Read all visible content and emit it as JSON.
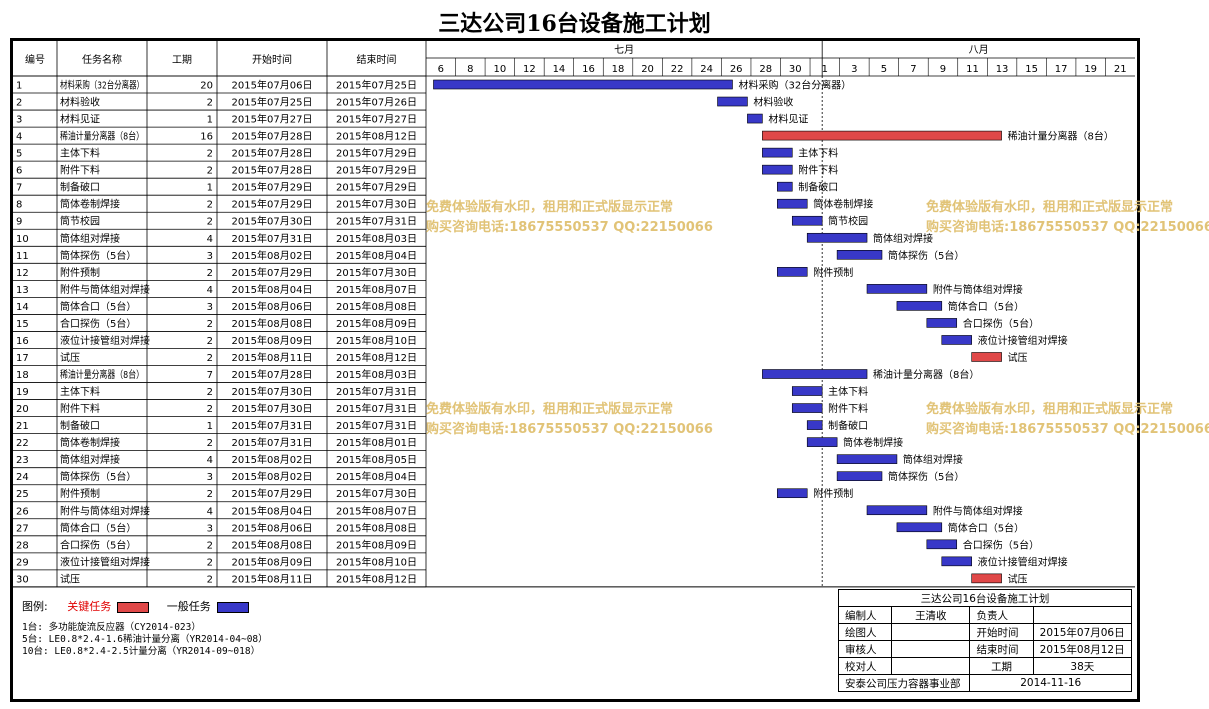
{
  "title": "三达公司16台设备施工计划",
  "headers": {
    "id": "编号",
    "name": "任务名称",
    "duration": "工期",
    "start": "开始时间",
    "end": "结束时间",
    "month1": "七月",
    "month2": "八月"
  },
  "day_ticks": [
    "6",
    "8",
    "10",
    "12",
    "14",
    "16",
    "18",
    "20",
    "22",
    "24",
    "26",
    "28",
    "30",
    "1",
    "3",
    "5",
    "7",
    "9",
    "11",
    "13",
    "15",
    "17",
    "19",
    "21"
  ],
  "colors": {
    "critical": "#e04848",
    "normal": "#3838c8",
    "critical_text": "#e00000"
  },
  "chart_data": {
    "type": "gantt",
    "x_start": "2015-07-05",
    "x_end": "2015-08-21",
    "tasks": [
      {
        "id": "1",
        "name": "材料采购（32台分离器）",
        "duration": "20",
        "start": "2015年07月06日",
        "end": "2015年07月25日",
        "s": "2015-07-06",
        "e": "2015-07-25",
        "critical": false,
        "label": "材料采购（32台分离器）"
      },
      {
        "id": "2",
        "name": "材料验收",
        "duration": "2",
        "start": "2015年07月25日",
        "end": "2015年07月26日",
        "s": "2015-07-25",
        "e": "2015-07-26",
        "critical": false,
        "label": "材料验收"
      },
      {
        "id": "3",
        "name": "材料见证",
        "duration": "1",
        "start": "2015年07月27日",
        "end": "2015年07月27日",
        "s": "2015-07-27",
        "e": "2015-07-27",
        "critical": false,
        "label": "材料见证"
      },
      {
        "id": "4",
        "name": "稀油计量分离器（8台）",
        "duration": "16",
        "start": "2015年07月28日",
        "end": "2015年08月12日",
        "s": "2015-07-28",
        "e": "2015-08-12",
        "critical": true,
        "label": "稀油计量分离器（8台）"
      },
      {
        "id": "5",
        "name": "主体下料",
        "duration": "2",
        "start": "2015年07月28日",
        "end": "2015年07月29日",
        "s": "2015-07-28",
        "e": "2015-07-29",
        "critical": false,
        "label": "主体下料"
      },
      {
        "id": "6",
        "name": "附件下料",
        "duration": "2",
        "start": "2015年07月28日",
        "end": "2015年07月29日",
        "s": "2015-07-28",
        "e": "2015-07-29",
        "critical": false,
        "label": "附件下料"
      },
      {
        "id": "7",
        "name": "制备破口",
        "duration": "1",
        "start": "2015年07月29日",
        "end": "2015年07月29日",
        "s": "2015-07-29",
        "e": "2015-07-29",
        "critical": false,
        "label": "制备破口"
      },
      {
        "id": "8",
        "name": "筒体卷制焊接",
        "duration": "2",
        "start": "2015年07月29日",
        "end": "2015年07月30日",
        "s": "2015-07-29",
        "e": "2015-07-30",
        "critical": false,
        "label": "筒体卷制焊接"
      },
      {
        "id": "9",
        "name": "筒节校园",
        "duration": "2",
        "start": "2015年07月30日",
        "end": "2015年07月31日",
        "s": "2015-07-30",
        "e": "2015-07-31",
        "critical": false,
        "label": "筒节校园"
      },
      {
        "id": "10",
        "name": "筒体组对焊接",
        "duration": "4",
        "start": "2015年07月31日",
        "end": "2015年08月03日",
        "s": "2015-07-31",
        "e": "2015-08-03",
        "critical": false,
        "label": "筒体组对焊接"
      },
      {
        "id": "11",
        "name": "筒体探伤（5台）",
        "duration": "3",
        "start": "2015年08月02日",
        "end": "2015年08月04日",
        "s": "2015-08-02",
        "e": "2015-08-04",
        "critical": false,
        "label": "筒体探伤（5台）"
      },
      {
        "id": "12",
        "name": "附件预制",
        "duration": "2",
        "start": "2015年07月29日",
        "end": "2015年07月30日",
        "s": "2015-07-29",
        "e": "2015-07-30",
        "critical": false,
        "label": "附件预制"
      },
      {
        "id": "13",
        "name": "附件与筒体组对焊接",
        "duration": "4",
        "start": "2015年08月04日",
        "end": "2015年08月07日",
        "s": "2015-08-04",
        "e": "2015-08-07",
        "critical": false,
        "label": "附件与筒体组对焊接"
      },
      {
        "id": "14",
        "name": "筒体合口（5台）",
        "duration": "3",
        "start": "2015年08月06日",
        "end": "2015年08月08日",
        "s": "2015-08-06",
        "e": "2015-08-08",
        "critical": false,
        "label": "筒体合口（5台）"
      },
      {
        "id": "15",
        "name": "合口探伤（5台）",
        "duration": "2",
        "start": "2015年08月08日",
        "end": "2015年08月09日",
        "s": "2015-08-08",
        "e": "2015-08-09",
        "critical": false,
        "label": "合口探伤（5台）"
      },
      {
        "id": "16",
        "name": "液位计接管组对焊接",
        "duration": "2",
        "start": "2015年08月09日",
        "end": "2015年08月10日",
        "s": "2015-08-09",
        "e": "2015-08-10",
        "critical": false,
        "label": "液位计接管组对焊接"
      },
      {
        "id": "17",
        "name": "试压",
        "duration": "2",
        "start": "2015年08月11日",
        "end": "2015年08月12日",
        "s": "2015-08-11",
        "e": "2015-08-12",
        "critical": true,
        "label": "试压"
      },
      {
        "id": "18",
        "name": "稀油计量分离器（8台）",
        "duration": "7",
        "start": "2015年07月28日",
        "end": "2015年08月03日",
        "s": "2015-07-28",
        "e": "2015-08-03",
        "critical": false,
        "label": "稀油计量分离器（8台）"
      },
      {
        "id": "19",
        "name": "主体下料",
        "duration": "2",
        "start": "2015年07月30日",
        "end": "2015年07月31日",
        "s": "2015-07-30",
        "e": "2015-07-31",
        "critical": false,
        "label": "主体下料"
      },
      {
        "id": "20",
        "name": "附件下料",
        "duration": "2",
        "start": "2015年07月30日",
        "end": "2015年07月31日",
        "s": "2015-07-30",
        "e": "2015-07-31",
        "critical": false,
        "label": "附件下料"
      },
      {
        "id": "21",
        "name": "制备破口",
        "duration": "1",
        "start": "2015年07月31日",
        "end": "2015年07月31日",
        "s": "2015-07-31",
        "e": "2015-07-31",
        "critical": false,
        "label": "制备破口"
      },
      {
        "id": "22",
        "name": "筒体卷制焊接",
        "duration": "2",
        "start": "2015年07月31日",
        "end": "2015年08月01日",
        "s": "2015-07-31",
        "e": "2015-08-01",
        "critical": false,
        "label": "筒体卷制焊接"
      },
      {
        "id": "23",
        "name": "筒体组对焊接",
        "duration": "4",
        "start": "2015年08月02日",
        "end": "2015年08月05日",
        "s": "2015-08-02",
        "e": "2015-08-05",
        "critical": false,
        "label": "筒体组对焊接"
      },
      {
        "id": "24",
        "name": "筒体探伤（5台）",
        "duration": "3",
        "start": "2015年08月02日",
        "end": "2015年08月04日",
        "s": "2015-08-02",
        "e": "2015-08-04",
        "critical": false,
        "label": "筒体探伤（5台）"
      },
      {
        "id": "25",
        "name": "附件预制",
        "duration": "2",
        "start": "2015年07月29日",
        "end": "2015年07月30日",
        "s": "2015-07-29",
        "e": "2015-07-30",
        "critical": false,
        "label": "附件预制"
      },
      {
        "id": "26",
        "name": "附件与筒体组对焊接",
        "duration": "4",
        "start": "2015年08月04日",
        "end": "2015年08月07日",
        "s": "2015-08-04",
        "e": "2015-08-07",
        "critical": false,
        "label": "附件与筒体组对焊接"
      },
      {
        "id": "27",
        "name": "筒体合口（5台）",
        "duration": "3",
        "start": "2015年08月06日",
        "end": "2015年08月08日",
        "s": "2015-08-06",
        "e": "2015-08-08",
        "critical": false,
        "label": "筒体合口（5台）"
      },
      {
        "id": "28",
        "name": "合口探伤（5台）",
        "duration": "2",
        "start": "2015年08月08日",
        "end": "2015年08月09日",
        "s": "2015-08-08",
        "e": "2015-08-09",
        "critical": false,
        "label": "合口探伤（5台）"
      },
      {
        "id": "29",
        "name": "液位计接管组对焊接",
        "duration": "2",
        "start": "2015年08月09日",
        "end": "2015年08月10日",
        "s": "2015-08-09",
        "e": "2015-08-10",
        "critical": false,
        "label": "液位计接管组对焊接"
      },
      {
        "id": "30",
        "name": "试压",
        "duration": "2",
        "start": "2015年08月11日",
        "end": "2015年08月12日",
        "s": "2015-08-11",
        "e": "2015-08-12",
        "critical": true,
        "label": "试压"
      }
    ]
  },
  "legend": {
    "title": "图例:",
    "critical": "关键任务",
    "normal": "一般任务"
  },
  "notes": [
    "1台: 多功能旋流反应器（CY2014-023）",
    "5台: LE0.8*2.4-1.6稀油计量分离（YR2014-04~08）",
    "10台: LE0.8*2.4-2.5计量分离（YR2014-09~018）"
  ],
  "info": {
    "title": "三达公司16台设备施工计划",
    "editor_label": "编制人",
    "editor": "王清收",
    "lead_label": "负责人",
    "lead": "",
    "drawer_label": "绘图人",
    "drawer": "",
    "start_label": "开始时间",
    "start": "2015年07月06日",
    "reviewer_label": "审核人",
    "reviewer": "",
    "end_label": "结束时间",
    "end": "2015年08月12日",
    "checker_label": "校对人",
    "checker": "",
    "duration_label": "工期",
    "duration": "38天",
    "dept": "安泰公司压力容器事业部",
    "date": "2014-11-16"
  },
  "watermark": {
    "line1": "免费体验版有水印，租用和正式版显示正常",
    "line2": "购买咨询电话:18675550537 QQ:22150066"
  }
}
